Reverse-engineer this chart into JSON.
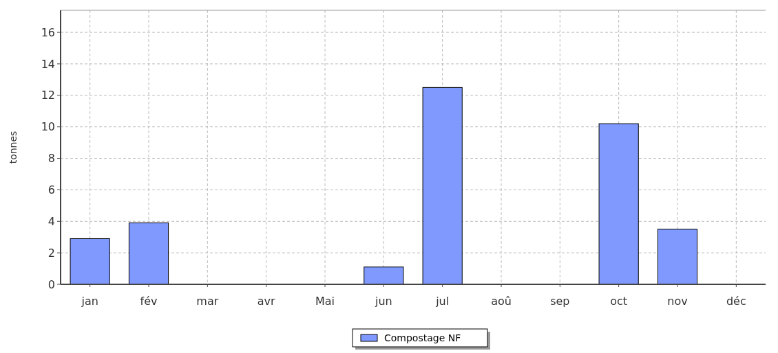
{
  "chart_data": {
    "type": "bar",
    "ylabel": "tonnes",
    "categories": [
      "jan",
      "fév",
      "mar",
      "avr",
      "Mai",
      "jun",
      "jul",
      "aoû",
      "sep",
      "oct",
      "nov",
      "déc"
    ],
    "series": [
      {
        "name": "Compostage NF",
        "color": "#8099ff",
        "values": [
          2.9,
          3.9,
          0,
          0,
          0,
          1.1,
          12.5,
          0,
          0,
          10.2,
          3.5,
          0
        ]
      }
    ],
    "ylim": [
      0,
      17.4
    ],
    "yticks": [
      0,
      2,
      4,
      6,
      8,
      10,
      12,
      14,
      16
    ],
    "grid": true,
    "legend": "bottom"
  }
}
